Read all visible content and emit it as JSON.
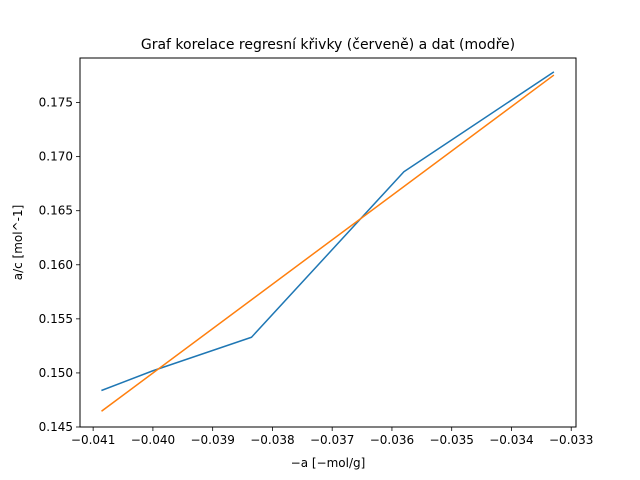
{
  "chart_data": {
    "type": "line",
    "title": "Graf korelace regresní křivky (červeně) a dat (modře)",
    "xlabel": "−a [−mol/g]",
    "ylabel": "a/c [mol^-1]",
    "xlim": [
      -0.04122,
      -0.03292
    ],
    "ylim": [
      0.145,
      0.17912
    ],
    "grid": false,
    "x_ticks": [
      {
        "value": -0.041,
        "label": "−0.041"
      },
      {
        "value": -0.04,
        "label": "−0.040"
      },
      {
        "value": -0.039,
        "label": "−0.039"
      },
      {
        "value": -0.038,
        "label": "−0.038"
      },
      {
        "value": -0.037,
        "label": "−0.037"
      },
      {
        "value": -0.036,
        "label": "−0.036"
      },
      {
        "value": -0.035,
        "label": "−0.035"
      },
      {
        "value": -0.034,
        "label": "−0.034"
      },
      {
        "value": -0.033,
        "label": "−0.033"
      }
    ],
    "y_ticks": [
      {
        "value": 0.145,
        "label": "0.145"
      },
      {
        "value": 0.15,
        "label": "0.150"
      },
      {
        "value": 0.155,
        "label": "0.155"
      },
      {
        "value": 0.16,
        "label": "0.160"
      },
      {
        "value": 0.165,
        "label": "0.165"
      },
      {
        "value": 0.17,
        "label": "0.170"
      },
      {
        "value": 0.175,
        "label": "0.175"
      }
    ],
    "series": [
      {
        "color": "#1f77b4",
        "x": [
          -0.04085,
          -0.04,
          -0.03835,
          -0.0358,
          -0.0333
        ],
        "y": [
          0.1484,
          0.1502,
          0.1533,
          0.1686,
          0.1778
        ]
      },
      {
        "color": "#ff7f0e",
        "x": [
          -0.04085,
          -0.0333
        ],
        "y": [
          0.1465,
          0.1775
        ]
      }
    ]
  }
}
